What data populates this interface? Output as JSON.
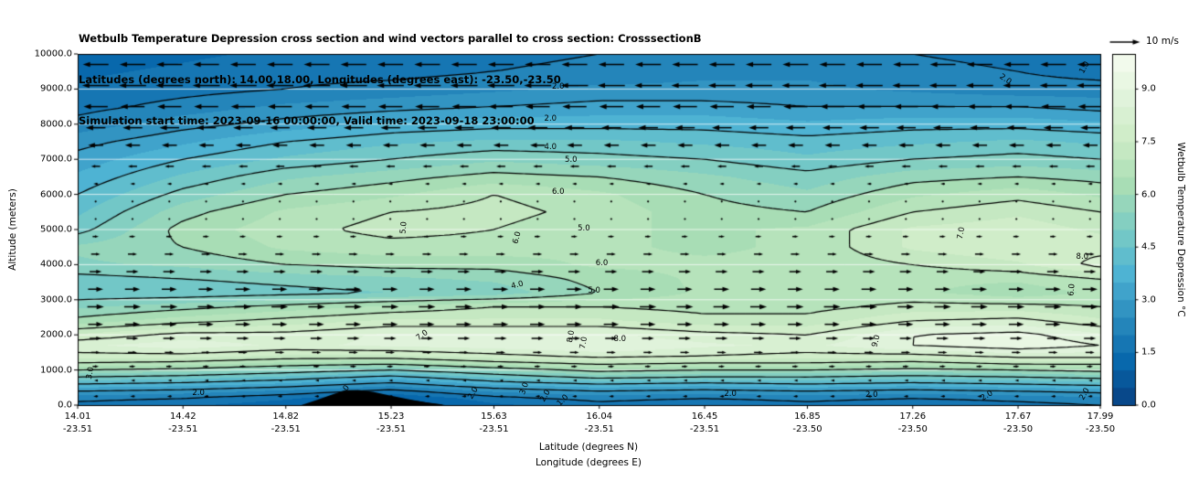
{
  "chart_data": {
    "type": "heatmap",
    "title_lines": [
      "Wetbulb Temperature Depression cross section and wind vectors parallel to cross section: CrosssectionB",
      "Latitudes (degrees north): 14.00,18.00, Longitudes (degrees east): -23.50,-23.50",
      "Simulation start time: 2023-09-16 00:00:00, Valid time: 2023-09-18 23:00:00"
    ],
    "xlabel_lines": [
      "Latitude (degrees N)",
      "Longitude (degrees E)"
    ],
    "ylabel": "Altitude (meters)",
    "xlim": [
      14.01,
      17.99
    ],
    "ylim": [
      0,
      10000
    ],
    "x_tick_lat": [
      "14.01",
      "14.42",
      "14.82",
      "15.23",
      "15.63",
      "16.04",
      "16.45",
      "16.85",
      "17.26",
      "17.67",
      "17.99"
    ],
    "x_tick_lon": [
      "-23.51",
      "-23.51",
      "-23.51",
      "-23.51",
      "-23.51",
      "-23.51",
      "-23.51",
      "-23.50",
      "-23.50",
      "-23.50",
      "-23.50"
    ],
    "y_tick": [
      "0.0",
      "1000.0",
      "2000.0",
      "3000.0",
      "4000.0",
      "5000.0",
      "6000.0",
      "7000.0",
      "8000.0",
      "9000.0",
      "10000.0"
    ],
    "colorbar": {
      "label": "Wetbulb Temperature Depression °C",
      "ticks": [
        "0.0",
        "1.5",
        "3.0",
        "4.5",
        "6.0",
        "7.5",
        "9.0"
      ],
      "tick_values": [
        0,
        1.5,
        3,
        4.5,
        6,
        7.5,
        9
      ],
      "vmin": 0,
      "vmax": 10,
      "colors": [
        "#084081",
        "#0868ac",
        "#2b8cbe",
        "#4eb3d3",
        "#7bccc4",
        "#a8ddb5",
        "#ccebc5",
        "#e0f3db",
        "#f7fcf0"
      ]
    },
    "quiver_key": {
      "label": "10 m/s",
      "speed": 10
    },
    "fill_step": 0.5,
    "contour_levels": [
      1,
      2,
      3,
      4,
      5,
      6,
      7,
      8,
      9
    ],
    "x": [
      14.01,
      14.42,
      14.82,
      15.23,
      15.63,
      16.04,
      16.45,
      16.85,
      17.26,
      17.67,
      17.99
    ],
    "y": [
      0,
      200,
      400,
      600,
      800,
      1000,
      1200,
      1400,
      1700,
      2000,
      2400,
      2800,
      3200,
      3600,
      4000,
      4500,
      5000,
      5500,
      6000,
      6500,
      7000,
      7500,
      8000,
      8500,
      9000,
      9500,
      10000
    ],
    "values": [
      [
        1.8,
        1.6,
        1.2,
        0.6,
        1.4,
        1.8,
        1.6,
        1.8,
        1.6,
        1.8,
        2.0
      ],
      [
        2.2,
        2.0,
        1.6,
        1.0,
        1.8,
        2.2,
        2.0,
        2.2,
        2.0,
        2.2,
        2.4
      ],
      [
        3.0,
        2.8,
        2.4,
        1.8,
        2.6,
        3.0,
        2.8,
        3.0,
        2.8,
        3.0,
        3.2
      ],
      [
        4.0,
        3.8,
        3.4,
        2.8,
        3.6,
        4.0,
        3.8,
        4.0,
        3.8,
        4.0,
        4.2
      ],
      [
        5.0,
        4.8,
        4.4,
        3.8,
        4.6,
        5.2,
        5.0,
        5.0,
        4.8,
        5.0,
        5.2
      ],
      [
        6.0,
        5.8,
        5.4,
        5.0,
        5.6,
        6.2,
        6.0,
        6.0,
        5.8,
        6.0,
        6.2
      ],
      [
        7.0,
        6.8,
        6.4,
        6.2,
        6.8,
        7.2,
        7.0,
        7.0,
        6.8,
        7.2,
        7.2
      ],
      [
        7.8,
        7.8,
        7.4,
        7.4,
        7.8,
        8.2,
        8.0,
        7.8,
        7.8,
        8.2,
        8.2
      ],
      [
        8.4,
        8.8,
        8.4,
        8.6,
        8.8,
        9.0,
        8.6,
        8.4,
        9.0,
        9.4,
        9.0
      ],
      [
        7.6,
        8.2,
        8.2,
        8.6,
        8.6,
        8.6,
        8.2,
        8.0,
        9.0,
        9.2,
        8.6
      ],
      [
        6.2,
        6.8,
        7.2,
        7.6,
        7.6,
        7.6,
        7.2,
        7.2,
        8.0,
        8.2,
        7.6
      ],
      [
        5.4,
        5.8,
        6.2,
        6.6,
        7.0,
        7.0,
        6.8,
        6.8,
        7.2,
        7.2,
        7.0
      ],
      [
        4.6,
        4.6,
        4.8,
        5.0,
        5.2,
        6.0,
        6.6,
        6.6,
        6.6,
        6.2,
        6.6
      ],
      [
        4.8,
        5.0,
        5.2,
        5.4,
        5.6,
        6.2,
        6.6,
        6.6,
        6.6,
        6.6,
        7.0
      ],
      [
        5.4,
        5.6,
        6.0,
        6.2,
        6.2,
        6.6,
        6.6,
        6.6,
        7.0,
        7.4,
        8.2
      ],
      [
        5.6,
        6.0,
        6.6,
        6.8,
        6.8,
        6.6,
        6.4,
        6.6,
        7.6,
        8.0,
        7.8
      ],
      [
        4.8,
        6.2,
        6.8,
        7.2,
        7.0,
        6.6,
        6.4,
        6.6,
        7.6,
        7.8,
        7.4
      ],
      [
        4.4,
        5.8,
        6.6,
        7.0,
        7.2,
        6.8,
        6.2,
        6.0,
        7.0,
        7.4,
        7.0
      ],
      [
        4.0,
        5.2,
        6.0,
        6.4,
        7.0,
        6.6,
        6.0,
        5.6,
        6.4,
        6.8,
        6.4
      ],
      [
        3.6,
        4.6,
        5.4,
        5.8,
        6.2,
        6.0,
        5.6,
        5.2,
        5.8,
        6.0,
        5.8
      ],
      [
        3.2,
        4.0,
        4.6,
        5.0,
        5.4,
        5.2,
        5.0,
        4.6,
        5.0,
        5.2,
        5.0
      ],
      [
        2.8,
        3.4,
        4.0,
        4.4,
        4.6,
        4.6,
        4.4,
        4.2,
        4.4,
        4.6,
        4.4
      ],
      [
        2.2,
        2.8,
        3.2,
        3.6,
        3.8,
        3.8,
        3.8,
        3.6,
        3.8,
        3.8,
        3.6
      ],
      [
        1.8,
        2.2,
        2.6,
        2.8,
        3.0,
        3.2,
        3.2,
        3.0,
        3.0,
        3.0,
        2.8
      ],
      [
        1.6,
        1.8,
        2.0,
        2.2,
        2.4,
        2.6,
        2.6,
        2.6,
        2.4,
        2.2,
        2.2
      ],
      [
        1.4,
        1.6,
        1.8,
        1.8,
        2.0,
        2.2,
        2.4,
        2.4,
        2.2,
        2.0,
        1.8
      ],
      [
        1.2,
        1.4,
        1.6,
        1.6,
        1.8,
        2.0,
        2.2,
        2.2,
        2.0,
        1.8,
        1.6
      ]
    ],
    "contour_labels": [
      {
        "v": "2.0",
        "lat": 15.88,
        "alt": 9070,
        "rot": 0
      },
      {
        "v": "2.0",
        "lat": 17.62,
        "alt": 9280,
        "rot": 35
      },
      {
        "v": "1.0",
        "lat": 17.93,
        "alt": 9600,
        "rot": -60
      },
      {
        "v": "2.0",
        "lat": 15.85,
        "alt": 8150,
        "rot": 0
      },
      {
        "v": "4.0",
        "lat": 15.85,
        "alt": 7350,
        "rot": 0
      },
      {
        "v": "5.0",
        "lat": 15.93,
        "alt": 6980,
        "rot": 0
      },
      {
        "v": "6.0",
        "lat": 15.88,
        "alt": 6080,
        "rot": 0
      },
      {
        "v": "5.0",
        "lat": 15.28,
        "alt": 5050,
        "rot": -85
      },
      {
        "v": "5.0",
        "lat": 15.98,
        "alt": 5020,
        "rot": 0
      },
      {
        "v": "6.0",
        "lat": 15.72,
        "alt": 4760,
        "rot": -75
      },
      {
        "v": "6.0",
        "lat": 16.05,
        "alt": 4040,
        "rot": 0
      },
      {
        "v": "5.0",
        "lat": 16.02,
        "alt": 3260,
        "rot": 0
      },
      {
        "v": "4.0",
        "lat": 15.72,
        "alt": 3420,
        "rot": -15
      },
      {
        "v": "8.0",
        "lat": 17.92,
        "alt": 4230,
        "rot": 0
      },
      {
        "v": "7.0",
        "lat": 17.45,
        "alt": 4900,
        "rot": -80
      },
      {
        "v": "6.0",
        "lat": 17.88,
        "alt": 3280,
        "rot": -85
      },
      {
        "v": "9.0",
        "lat": 17.12,
        "alt": 1830,
        "rot": -75
      },
      {
        "v": "7.0",
        "lat": 15.35,
        "alt": 1980,
        "rot": -35
      },
      {
        "v": "8.0",
        "lat": 16.12,
        "alt": 1870,
        "rot": 0
      },
      {
        "v": "7.0",
        "lat": 15.98,
        "alt": 1760,
        "rot": -80
      },
      {
        "v": "8.0",
        "lat": 15.93,
        "alt": 1960,
        "rot": -80
      },
      {
        "v": "3.0",
        "lat": 14.06,
        "alt": 900,
        "rot": -80
      },
      {
        "v": "2.0",
        "lat": 14.48,
        "alt": 330,
        "rot": 0
      },
      {
        "v": "1.0",
        "lat": 15.05,
        "alt": 380,
        "rot": -55
      },
      {
        "v": "2.0",
        "lat": 15.55,
        "alt": 330,
        "rot": -60
      },
      {
        "v": "3.0",
        "lat": 15.75,
        "alt": 460,
        "rot": -70
      },
      {
        "v": "2.0",
        "lat": 15.83,
        "alt": 260,
        "rot": -60
      },
      {
        "v": "1.0",
        "lat": 15.9,
        "alt": 120,
        "rot": -45
      },
      {
        "v": "2.0",
        "lat": 16.55,
        "alt": 300,
        "rot": 0
      },
      {
        "v": "2.0",
        "lat": 17.1,
        "alt": 280,
        "rot": 0
      },
      {
        "v": "2.0",
        "lat": 17.55,
        "alt": 260,
        "rot": -30
      },
      {
        "v": "2.0",
        "lat": 17.93,
        "alt": 300,
        "rot": -60
      }
    ],
    "wind": {
      "columns": 28,
      "lat_start": 14.08,
      "lat_end": 17.95,
      "rows": [
        {
          "alt": 9700,
          "u": -8.5
        },
        {
          "alt": 9100,
          "u": -9
        },
        {
          "alt": 8500,
          "u": -8
        },
        {
          "alt": 7900,
          "u": -6.5
        },
        {
          "alt": 7400,
          "u": -5
        },
        {
          "alt": 6800,
          "u": -3
        },
        {
          "alt": 6300,
          "u": -1.5
        },
        {
          "alt": 5800,
          "u": -0.5
        },
        {
          "alt": 5300,
          "u": 0.8
        },
        {
          "alt": 4800,
          "u": 2
        },
        {
          "alt": 4300,
          "u": 3
        },
        {
          "alt": 3800,
          "u": 4
        },
        {
          "alt": 3300,
          "u": 5
        },
        {
          "alt": 2800,
          "u": 5.5
        },
        {
          "alt": 2300,
          "u": 5
        },
        {
          "alt": 1900,
          "u": 4
        },
        {
          "alt": 1500,
          "u": 3
        },
        {
          "alt": 1100,
          "u": 2
        },
        {
          "alt": 700,
          "u": -1
        },
        {
          "alt": 250,
          "u": -1.5
        }
      ]
    },
    "terrain": {
      "lats": [
        14.88,
        14.94,
        15.0,
        15.05,
        15.1,
        15.16,
        15.22,
        15.3,
        15.38,
        15.44
      ],
      "heights": [
        0,
        140,
        300,
        420,
        430,
        380,
        280,
        160,
        60,
        0
      ]
    }
  }
}
